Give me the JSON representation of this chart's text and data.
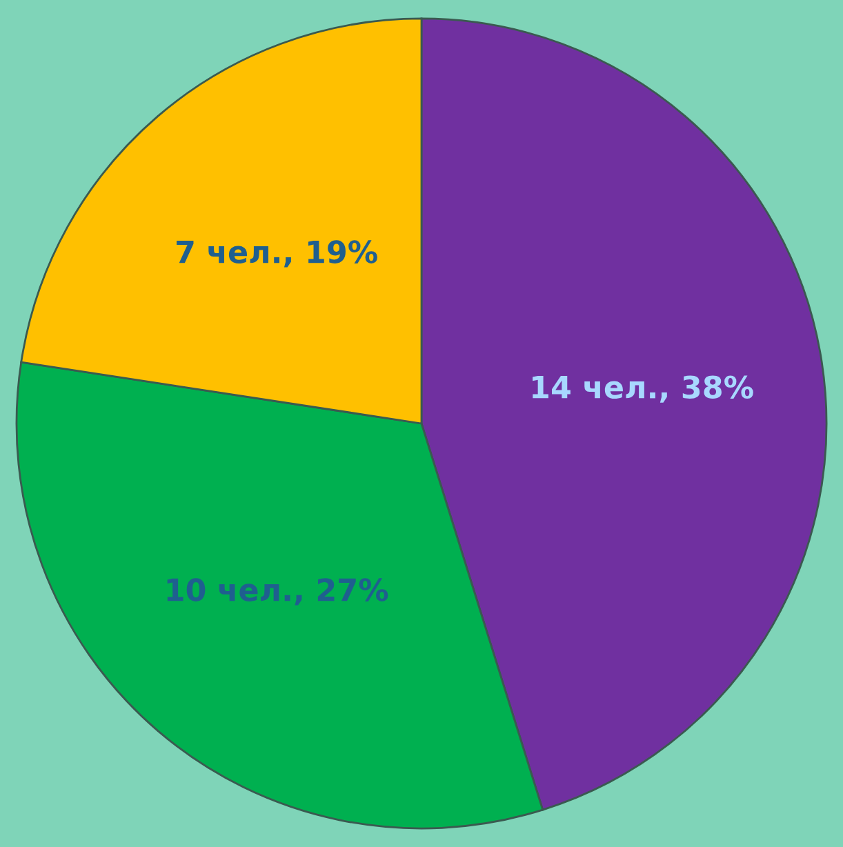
{
  "chart_data": {
    "type": "pie",
    "categories": [
      null,
      null,
      null
    ],
    "values": [
      14,
      10,
      7
    ],
    "colors": [
      "#7030a0",
      "#00b050",
      "#ffc000"
    ],
    "value_labels": [
      "14 чел., 38%",
      "10 чел., 27%",
      "7 чел., 19%"
    ],
    "legend": false
  }
}
